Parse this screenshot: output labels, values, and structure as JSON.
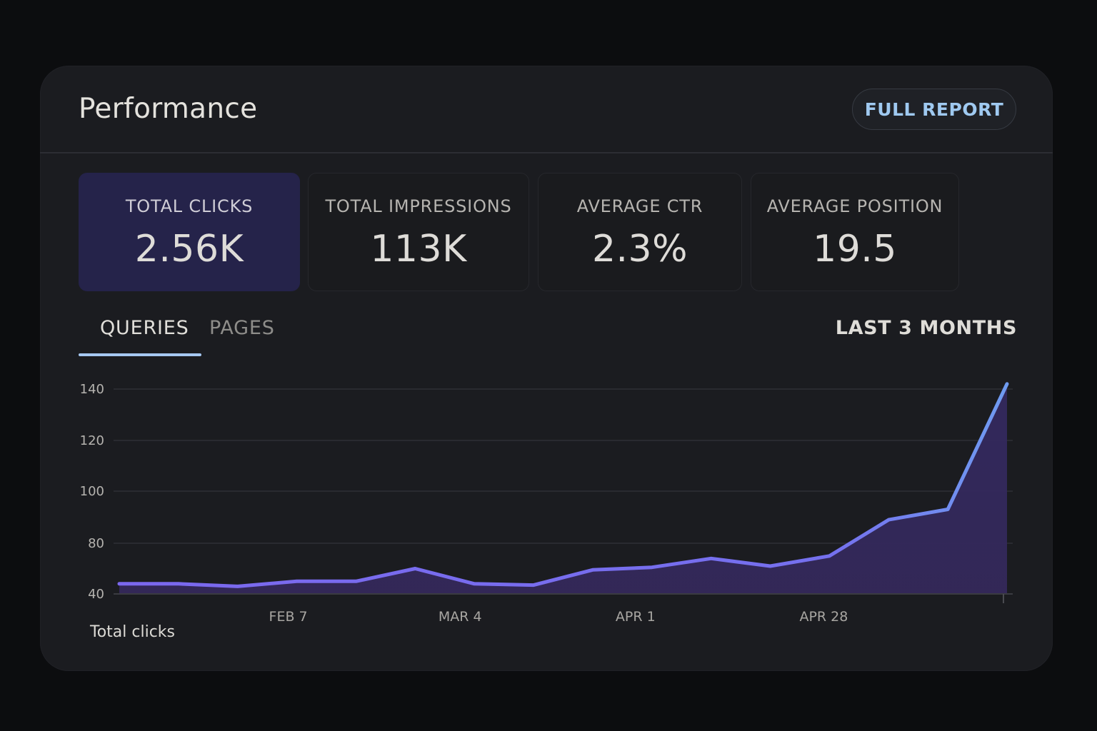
{
  "header": {
    "title": "Performance",
    "full_report_label": "FULL REPORT"
  },
  "metrics": [
    {
      "label": "TOTAL CLICKS",
      "value": "2.56K",
      "active": true
    },
    {
      "label": "TOTAL IMPRESSIONS",
      "value": "113K",
      "active": false
    },
    {
      "label": "AVERAGE CTR",
      "value": "2.3%",
      "active": false
    },
    {
      "label": "AVERAGE POSITION",
      "value": "19.5",
      "active": false
    }
  ],
  "tabs": [
    {
      "label": "QUERIES",
      "active": true
    },
    {
      "label": "PAGES",
      "active": false
    }
  ],
  "date_range": "LAST 3 MONTHS",
  "colors": {
    "accent_tab": "#a6c8f2",
    "line_start": "#7b68ee",
    "line_end": "#6f9bf0",
    "area_fill": "#3a2d66",
    "active_metric_bg": "#25234a",
    "button_text": "#9fc9f0"
  },
  "chart_data": {
    "type": "area",
    "title": "",
    "series": [
      {
        "name": "Total clicks",
        "values": [
          48,
          48,
          46,
          50,
          50,
          60,
          48,
          47,
          59,
          61,
          68,
          62,
          70,
          89,
          93,
          142
        ]
      }
    ],
    "x_tick_labels": [
      "FEB 7",
      "MAR 4",
      "APR 1",
      "APR 28"
    ],
    "x_tick_positions": [
      3,
      6,
      9,
      12
    ],
    "y_ticks": [
      40,
      80,
      100,
      120,
      140
    ],
    "ylim": [
      40,
      142
    ],
    "xlabel": "",
    "ylabel": "",
    "legend": [
      "Total clicks"
    ],
    "legend_position": "bottom-left",
    "grid": true
  }
}
